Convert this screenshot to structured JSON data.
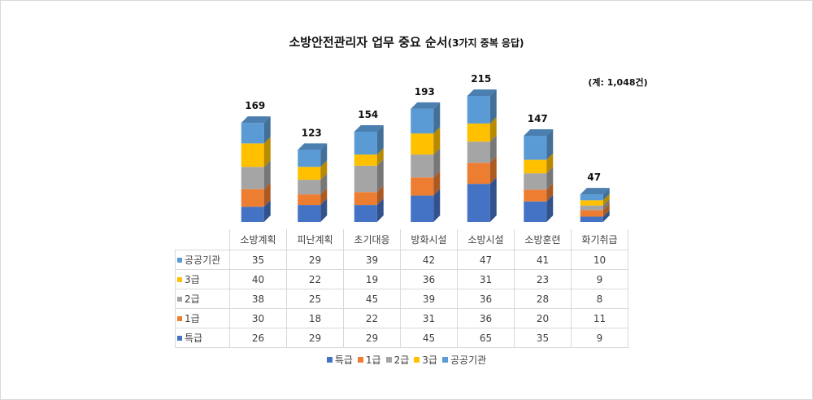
{
  "chart_data": {
    "type": "bar",
    "stacked": true,
    "title": "소방안전관리자 업무 중요 순서",
    "subtitle": "(3가지 중복 응답)",
    "total_note": "(계: 1,048건)",
    "categories": [
      "소방계획",
      "피난계획",
      "초기대응",
      "방화시설",
      "소방시설",
      "소방훈련",
      "화기취급"
    ],
    "totals": [
      169,
      123,
      154,
      193,
      215,
      147,
      47
    ],
    "series": [
      {
        "name": "특급",
        "color": "#4472c4",
        "values": [
          26,
          29,
          29,
          45,
          65,
          35,
          9
        ]
      },
      {
        "name": "1급",
        "color": "#ed7d31",
        "values": [
          30,
          18,
          22,
          31,
          36,
          20,
          11
        ]
      },
      {
        "name": "2급",
        "color": "#a5a5a5",
        "values": [
          38,
          25,
          45,
          39,
          36,
          28,
          8
        ]
      },
      {
        "name": "3급",
        "color": "#ffc000",
        "values": [
          40,
          22,
          19,
          36,
          31,
          23,
          9
        ]
      },
      {
        "name": "공공기관",
        "color": "#5b9bd5",
        "values": [
          35,
          29,
          39,
          42,
          47,
          41,
          10
        ]
      }
    ],
    "ylim": [
      0,
      215
    ],
    "data_table": true,
    "legend_position": "bottom"
  }
}
